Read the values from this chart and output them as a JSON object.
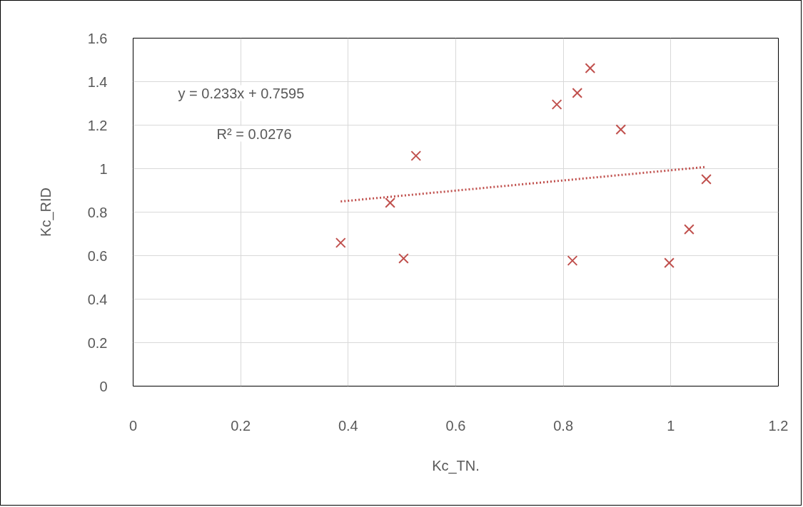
{
  "chart_data": {
    "type": "scatter",
    "xlabel": "Kc_TN.",
    "ylabel": "Kc_RID",
    "xlim": [
      0,
      1.2
    ],
    "ylim": [
      0,
      1.6
    ],
    "xticks": [
      0,
      0.2,
      0.4,
      0.6,
      0.8,
      1,
      1.2
    ],
    "yticks": [
      0,
      0.2,
      0.4,
      0.6,
      0.8,
      1,
      1.2,
      1.4,
      1.6
    ],
    "grid": true,
    "annotations": [
      "y = 0.233x + 0.7595",
      "R² = 0.0276"
    ],
    "series": [
      {
        "marker": "cross",
        "color": "#c0504d",
        "x": [
          0.386,
          0.478,
          0.526,
          0.503,
          0.788,
          0.826,
          0.85,
          0.907,
          0.817,
          0.997,
          1.034,
          1.066
        ],
        "values": [
          0.659,
          0.843,
          1.059,
          0.587,
          1.295,
          1.348,
          1.462,
          1.18,
          0.577,
          0.567,
          0.721,
          0.951
        ]
      },
      {
        "type": "line",
        "color": "#c0504d",
        "line_style": "dotted",
        "x": [
          0.386,
          1.066
        ],
        "values": [
          0.849,
          1.008
        ]
      }
    ]
  }
}
